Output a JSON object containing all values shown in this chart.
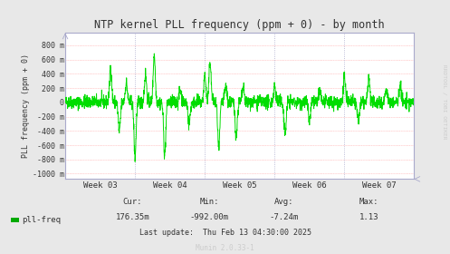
{
  "title": "NTP kernel PLL frequency (ppm + 0) - by month",
  "ylabel": "PLL frequency (ppm + 0)",
  "yticks": [
    800,
    600,
    400,
    200,
    0,
    -200,
    -400,
    -600,
    -800,
    -1000
  ],
  "ytick_labels": [
    "800 m",
    "600 m",
    "400 m",
    "200 m",
    "0",
    "-200 m",
    "-400 m",
    "-600 m",
    "-800 m",
    "-1000 m"
  ],
  "ylim": [
    -1075,
    970
  ],
  "xtick_labels": [
    "Week 03",
    "Week 04",
    "Week 05",
    "Week 06",
    "Week 07"
  ],
  "bg_color": "#e8e8e8",
  "plot_bg_color": "#ffffff",
  "grid_color_h": "#ffaaaa",
  "grid_color_v": "#aaaacc",
  "border_color": "#aaaacc",
  "line_color": "#00dd00",
  "legend_color": "#00aa00",
  "cur_label": "Cur:",
  "cur_val": "176.35m",
  "min_label": "Min:",
  "min_val": "-992.00m",
  "avg_label": "Avg:",
  "avg_val": "-7.24m",
  "max_label": "Max:",
  "max_val": "1.13",
  "last_update": "Last update:  Thu Feb 13 04:30:00 2025",
  "munin_version": "Munin 2.0.33-1",
  "watermark": "RRDTOOL / TOBI OETIKER",
  "title_color": "#333333",
  "text_color": "#333333",
  "watermark_color": "#cccccc",
  "legend_text_color": "#333333",
  "num_points": 2000,
  "seed": 42
}
